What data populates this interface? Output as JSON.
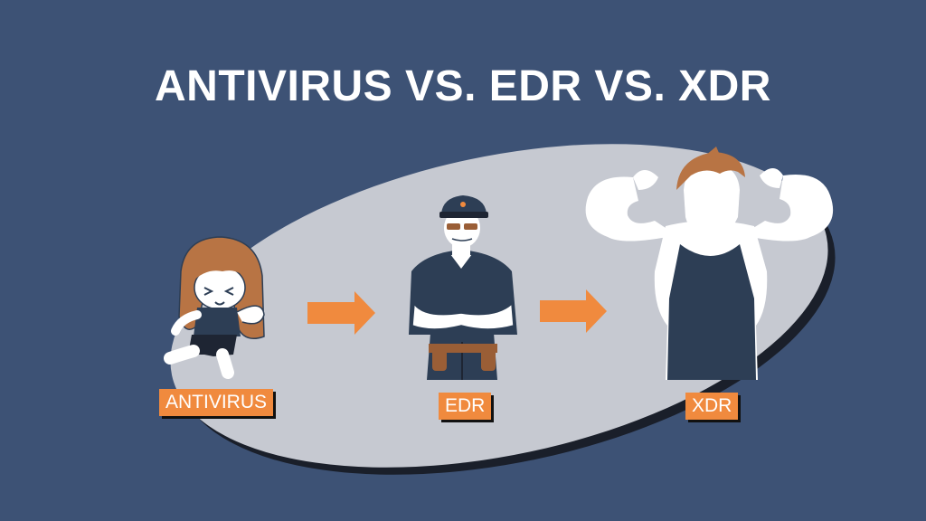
{
  "title": "ANTIVIRUS VS. EDR VS. XDR",
  "stages": [
    {
      "label": "ANTIVIRUS",
      "figure": "child-figure-running"
    },
    {
      "label": "EDR",
      "figure": "security-guard-figure"
    },
    {
      "label": "XDR",
      "figure": "muscular-man-figure"
    }
  ],
  "colors": {
    "background": "#3d5275",
    "ellipse": "#c6c9d1",
    "accent": "#f08a3e",
    "navy": "#2d3e55",
    "hair": "#b87444",
    "skin": "#ffffff"
  }
}
